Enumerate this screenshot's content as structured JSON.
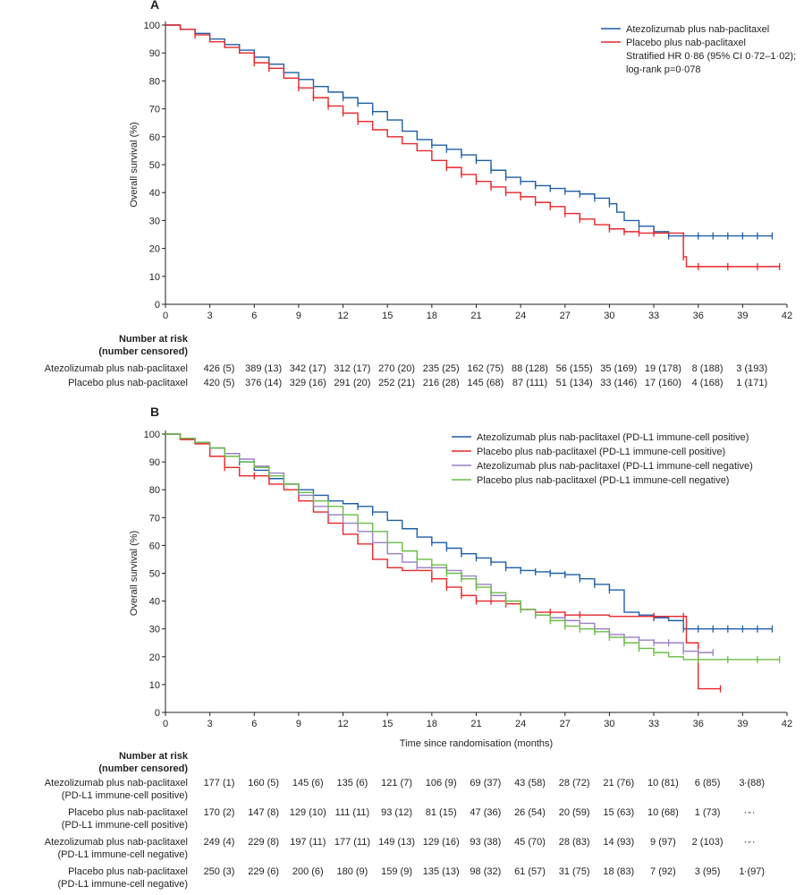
{
  "panel_a": {
    "letter": "A",
    "ylabel": "Overall survival (%)",
    "legend": [
      {
        "label": "Atezolizumab plus nab-paclitaxel",
        "color": "#1f5fa8"
      },
      {
        "label": "Placebo plus nab-paclitaxel",
        "color": "#e8262b"
      }
    ],
    "annotation_line1": "Stratified HR 0·86 (95% CI 0·72–1·02);",
    "annotation_line2": "log-rank p=0·078",
    "risk_title_1": "Number at risk",
    "risk_title_2": "(number censored)",
    "risk_rows": [
      {
        "label": "Atezolizumab plus nab-paclitaxel",
        "cells": [
          "426 (5)",
          "389 (13)",
          "342 (17)",
          "312 (17)",
          "270 (20)",
          "235 (25)",
          "162 (75)",
          "88 (128)",
          "56 (155)",
          "35 (169)",
          "19 (178)",
          "8 (188)",
          "3 (193)",
          "··"
        ]
      },
      {
        "label": "Placebo plus nab-paclitaxel",
        "cells": [
          "420 (5)",
          "376 (14)",
          "329 (16)",
          "291 (20)",
          "252 (21)",
          "216 (28)",
          "145 (68)",
          "87 (111)",
          "51 (134)",
          "33 (146)",
          "17 (160)",
          "4 (168)",
          "1 (171)",
          "··"
        ]
      }
    ]
  },
  "panel_b": {
    "letter": "B",
    "ylabel": "Overall survival (%)",
    "xlabel": "Time since randomisation (months)",
    "legend": [
      {
        "label": "Atezolizumab plus nab-paclitaxel (PD-L1 immune-cell positive)",
        "color": "#1f5fa8"
      },
      {
        "label": "Placebo plus nab-paclitaxel (PD-L1  immune-cell positive)",
        "color": "#e8262b"
      },
      {
        "label": "Atezolizumab plus nab-paclitaxel (PD-L1 immune-cell negative)",
        "color": "#9b7fc4"
      },
      {
        "label": "Placebo plus nab-paclitaxel (PD-L1 immune-cell negative)",
        "color": "#6abd45"
      }
    ],
    "risk_title_1": "Number at risk",
    "risk_title_2": "(number censored)",
    "risk_rows": [
      {
        "label": "Atezolizumab plus nab-paclitaxel",
        "sub": "(PD-L1 immune-cell positive)",
        "cells": [
          "177 (1)",
          "160 (5)",
          "145 (6)",
          "135 (6)",
          "121 (7)",
          "106 (9)",
          "69 (37)",
          "43 (58)",
          "28 (72)",
          "21 (76)",
          "10 (81)",
          "6 (85)",
          "3 (88)",
          "··"
        ]
      },
      {
        "label": "Placebo plus nab-paclitaxel",
        "sub": "(PD-L1  immune-cell positive)",
        "cells": [
          "170 (2)",
          "147 (8)",
          "129 (10)",
          "111 (11)",
          "93 (12)",
          "81 (15)",
          "47 (36)",
          "26 (54)",
          "20 (59)",
          "15 (63)",
          "10 (68)",
          "1 (73)",
          "··",
          "··"
        ]
      },
      {
        "label": "Atezolizumab plus nab-paclitaxel",
        "sub": "(PD-L1 immune-cell negative)",
        "cells": [
          "249 (4)",
          "229 (8)",
          "197 (11)",
          "177 (11)",
          "149 (13)",
          "129 (16)",
          "93 (38)",
          "45 (70)",
          "28 (83)",
          "14 (93)",
          "9 (97)",
          "2 (103)",
          "··",
          "··"
        ]
      },
      {
        "label": "Placebo plus nab-paclitaxel",
        "sub": "(PD-L1 immune-cell negative)",
        "cells": [
          "250 (3)",
          "229 (6)",
          "200 (6)",
          "180 (9)",
          "159 (9)",
          "135 (13)",
          "98 (32)",
          "61 (57)",
          "31 (75)",
          "18 (83)",
          "7 (92)",
          "3 (95)",
          "1 (97)",
          "··"
        ]
      }
    ]
  },
  "chart_data": [
    {
      "type": "line",
      "subtype": "kaplan-meier step",
      "title": "",
      "xlabel": "",
      "ylabel": "Overall survival (%)",
      "xlim": [
        0,
        42
      ],
      "ylim": [
        0,
        100
      ],
      "xticks": [
        0,
        3,
        6,
        9,
        12,
        15,
        18,
        21,
        24,
        27,
        30,
        33,
        36,
        39,
        42
      ],
      "yticks": [
        0,
        10,
        20,
        30,
        40,
        50,
        60,
        70,
        80,
        90,
        100
      ],
      "legend_position": "top-right",
      "grid": false,
      "series": [
        {
          "name": "Atezolizumab plus nab-paclitaxel",
          "color": "#1f5fa8",
          "x": [
            0,
            1,
            2,
            3,
            4,
            5,
            6,
            7,
            8,
            9,
            10,
            11,
            12,
            13,
            14,
            15,
            16,
            17,
            18,
            19,
            20,
            21,
            22,
            23,
            24,
            25,
            26,
            27,
            28,
            29,
            30,
            30.5,
            31,
            32,
            33,
            34,
            35,
            36,
            38,
            40,
            41
          ],
          "y": [
            100,
            98.5,
            97,
            95,
            93,
            91,
            88.5,
            86,
            83,
            80.5,
            78,
            76,
            74,
            72,
            69,
            66,
            62,
            59,
            57,
            55.5,
            53.5,
            51.5,
            48,
            45.5,
            44,
            42.5,
            41.5,
            40.5,
            39.5,
            38,
            36,
            33,
            30,
            28,
            26,
            24.5,
            24.5,
            24.5,
            24.5,
            24.5,
            24.5
          ],
          "censor_x": [
            4,
            5,
            8,
            12,
            13,
            14,
            18,
            19,
            20,
            21,
            22,
            23,
            24,
            25,
            26,
            27,
            28,
            29,
            30,
            32,
            33,
            34,
            35,
            36,
            37,
            38,
            39,
            40,
            41
          ]
        },
        {
          "name": "Placebo plus nab-paclitaxel",
          "color": "#e8262b",
          "x": [
            0,
            1,
            2,
            3,
            4,
            5,
            6,
            7,
            8,
            9,
            10,
            11,
            12,
            13,
            14,
            15,
            16,
            17,
            18,
            19,
            20,
            21,
            22,
            23,
            24,
            25,
            26,
            27,
            28,
            29,
            30,
            31,
            32,
            33,
            34,
            35,
            35.2,
            36,
            38,
            40,
            41.5
          ],
          "y": [
            100,
            98.5,
            96.5,
            94,
            92,
            90,
            86.5,
            84.5,
            81,
            77.5,
            74,
            71,
            68.5,
            65.5,
            62.5,
            60,
            57.5,
            55,
            51.5,
            49,
            46.5,
            44,
            42,
            40,
            38.5,
            36.5,
            35,
            32.5,
            30.5,
            28.5,
            27,
            26,
            25.5,
            25.5,
            25.5,
            17,
            13.5,
            13.5,
            13.5,
            13.5,
            13.5
          ],
          "censor_x": [
            2,
            6,
            7,
            9,
            10,
            11,
            12,
            13,
            19,
            20,
            21,
            22,
            23,
            24,
            25,
            26,
            27,
            28,
            30,
            31,
            32,
            33,
            35,
            36,
            38,
            40,
            41.5
          ]
        }
      ]
    },
    {
      "type": "line",
      "subtype": "kaplan-meier step",
      "title": "",
      "xlabel": "Time since randomisation (months)",
      "ylabel": "Overall survival (%)",
      "xlim": [
        0,
        42
      ],
      "ylim": [
        0,
        100
      ],
      "xticks": [
        0,
        3,
        6,
        9,
        12,
        15,
        18,
        21,
        24,
        27,
        30,
        33,
        36,
        39,
        42
      ],
      "yticks": [
        0,
        10,
        20,
        30,
        40,
        50,
        60,
        70,
        80,
        90,
        100
      ],
      "legend_position": "top-right",
      "grid": false,
      "series": [
        {
          "name": "Atezolizumab plus nab-paclitaxel (PD-L1 immune-cell positive)",
          "color": "#1f5fa8",
          "x": [
            0,
            1,
            2,
            3,
            4,
            5,
            6,
            7,
            8,
            9,
            10,
            11,
            12,
            13,
            14,
            15,
            16,
            17,
            18,
            19,
            20,
            21,
            22,
            23,
            24,
            25,
            26,
            27,
            28,
            29,
            30,
            31,
            32,
            33,
            34,
            35,
            36,
            38,
            40,
            41
          ],
          "y": [
            100,
            98.5,
            97,
            95,
            93,
            90,
            87,
            84,
            82,
            80,
            78,
            76,
            75,
            74,
            72,
            69,
            66,
            63,
            61,
            59,
            57,
            55.5,
            54,
            52,
            51,
            50.5,
            50,
            49.5,
            48,
            46,
            44,
            36,
            35,
            34,
            33,
            30,
            30,
            30,
            30,
            30
          ],
          "censor_x": [
            4,
            5,
            13,
            14,
            18,
            19,
            20,
            21,
            22,
            23,
            24,
            25,
            26,
            27,
            28,
            29,
            30,
            33,
            35,
            36,
            37,
            38,
            39,
            40,
            41
          ]
        },
        {
          "name": "Placebo plus nab-paclitaxel (PD-L1  immune-cell positive)",
          "color": "#e8262b",
          "x": [
            0,
            1,
            2,
            3,
            4,
            5,
            6,
            7,
            8,
            9,
            10,
            11,
            12,
            13,
            14,
            15,
            16,
            17,
            18,
            19,
            20,
            21,
            22,
            23,
            24,
            25,
            26,
            27,
            28,
            29,
            30,
            31,
            32,
            33,
            34,
            35,
            35.2,
            36,
            37.5
          ],
          "y": [
            100,
            98,
            96.5,
            92,
            88,
            85,
            85,
            82,
            80,
            76,
            72,
            68,
            64,
            60.5,
            55,
            52,
            51,
            51,
            48,
            45,
            42,
            40,
            40,
            39,
            37,
            36,
            36,
            35,
            35,
            35,
            34.5,
            34.5,
            34.5,
            34.5,
            34.5,
            34.5,
            25,
            8.5,
            8.5
          ],
          "censor_x": [
            4,
            6,
            18,
            19,
            20,
            21,
            22,
            23,
            25,
            26,
            27,
            28,
            33,
            35,
            37.5
          ]
        },
        {
          "name": "Atezolizumab plus nab-paclitaxel (PD-L1 immune-cell negative)",
          "color": "#9b7fc4",
          "x": [
            0,
            1,
            2,
            3,
            4,
            5,
            6,
            7,
            8,
            9,
            10,
            11,
            12,
            13,
            14,
            15,
            16,
            17,
            18,
            19,
            20,
            21,
            22,
            23,
            24,
            25,
            26,
            27,
            28,
            29,
            30,
            31,
            32,
            33,
            34,
            35,
            36,
            37
          ],
          "y": [
            100,
            98.5,
            97,
            95,
            93,
            91,
            88.5,
            86,
            82,
            78,
            74,
            71,
            68,
            65,
            61,
            57,
            54,
            52,
            52,
            51,
            49,
            46,
            42,
            40,
            37,
            35,
            34,
            33,
            32,
            30,
            28,
            27,
            26,
            25,
            25,
            22,
            21.5,
            21.5
          ],
          "censor_x": [
            17,
            18,
            19,
            20,
            21,
            22,
            23,
            24,
            25,
            26,
            27,
            28,
            29,
            30,
            31,
            32,
            33,
            34,
            35,
            36,
            37
          ]
        },
        {
          "name": "Placebo plus nab-paclitaxel (PD-L1 immune-cell negative)",
          "color": "#6abd45",
          "x": [
            0,
            1,
            2,
            3,
            4,
            5,
            6,
            7,
            8,
            9,
            10,
            11,
            12,
            13,
            14,
            15,
            16,
            17,
            18,
            19,
            20,
            21,
            22,
            23,
            24,
            25,
            26,
            27,
            28,
            29,
            30,
            31,
            32,
            33,
            34,
            35,
            36,
            38,
            40,
            41.5
          ],
          "y": [
            100,
            98.5,
            97,
            95,
            92,
            90,
            88,
            85,
            82,
            79,
            76,
            74,
            71,
            68,
            65,
            61,
            58,
            55,
            53,
            50,
            48,
            45,
            43,
            40,
            37,
            35,
            33,
            31,
            30,
            29,
            27,
            25,
            23,
            21.5,
            20,
            19,
            19,
            19,
            19,
            19
          ],
          "censor_x": [
            17,
            18,
            19,
            20,
            21,
            22,
            23,
            24,
            25,
            26,
            27,
            28,
            29,
            30,
            31,
            32,
            33,
            36,
            38,
            40,
            41.5
          ]
        }
      ]
    }
  ]
}
